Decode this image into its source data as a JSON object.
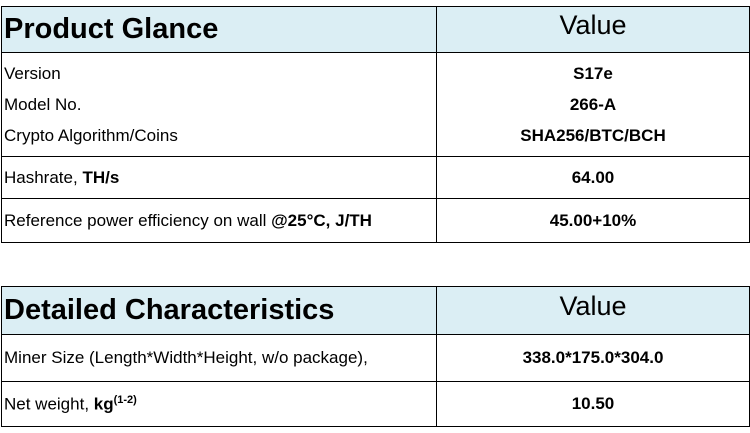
{
  "product_table": {
    "header": {
      "label": "Product Glance",
      "value": "Value"
    },
    "basic_rows": [
      {
        "label": "Version",
        "value": "S17e"
      },
      {
        "label": "Model No.",
        "value": "266-A"
      },
      {
        "label": "Crypto Algorithm/Coins",
        "value": "SHA256/BTC/BCH"
      }
    ],
    "hashrate": {
      "label": "Hashrate, ",
      "unit": "TH/s",
      "value": "64.00"
    },
    "efficiency": {
      "label": "Reference power efficiency on wall ",
      "unit": "@25°C, J/TH",
      "value": "45.00+10%"
    }
  },
  "details_table": {
    "header": {
      "label": "Detailed Characteristics",
      "value": "Value"
    },
    "size": {
      "label": "Miner Size (Length*Width*Height, w/o package),",
      "value": "338.0*175.0*304.0"
    },
    "weight": {
      "label": "Net weight, ",
      "unit": "kg",
      "sup": "(1-2)",
      "value": "10.50"
    }
  }
}
